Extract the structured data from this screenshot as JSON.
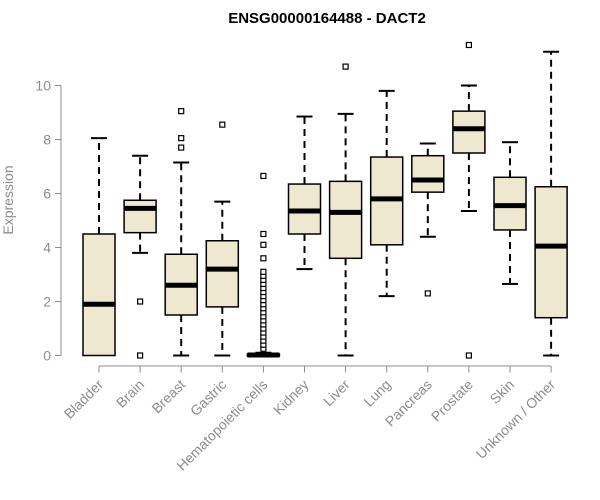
{
  "chart_data": {
    "type": "boxplot",
    "title": "ENSG00000164488 - DACT2",
    "xlabel": "",
    "ylabel": "Expression",
    "ylim": [
      0,
      11.5
    ],
    "yticks": [
      0,
      2,
      4,
      6,
      8,
      10
    ],
    "colors": {
      "box_fill": "#efe8d1",
      "stroke": "#000000",
      "axis": "#8c8c8c",
      "median": "#000000"
    },
    "categories": [
      "Bladder",
      "Brain",
      "Breast",
      "Gastric",
      "Hematopoietic cells",
      "Kidney",
      "Liver",
      "Lung",
      "Pancreas",
      "Prostate",
      "Skin",
      "Unknown / Other"
    ],
    "boxes": [
      {
        "category": "Bladder",
        "min": 0,
        "q1": 0,
        "median": 1.9,
        "q3": 4.5,
        "max": 8.05,
        "outliers": []
      },
      {
        "category": "Brain",
        "min": 3.8,
        "q1": 4.55,
        "median": 5.45,
        "q3": 5.75,
        "max": 7.4,
        "outliers": [
          2.0,
          0.0
        ]
      },
      {
        "category": "Breast",
        "min": 0,
        "q1": 1.5,
        "median": 2.6,
        "q3": 3.75,
        "max": 7.15,
        "outliers": [
          7.7,
          8.05,
          9.05
        ]
      },
      {
        "category": "Gastric",
        "min": 0,
        "q1": 1.8,
        "median": 3.2,
        "q3": 4.25,
        "max": 5.7,
        "outliers": [
          8.55
        ]
      },
      {
        "category": "Hematopoietic cells",
        "min": 0,
        "q1": 0,
        "median": 0.02,
        "q3": 0.05,
        "max": 0.1,
        "outliers": [
          0.25,
          0.4,
          0.55,
          0.7,
          0.85,
          1.0,
          1.15,
          1.3,
          1.45,
          1.6,
          1.75,
          1.9,
          2.05,
          2.2,
          2.35,
          2.5,
          2.65,
          2.8,
          2.95,
          3.1,
          3.6,
          4.1,
          4.5,
          6.65
        ]
      },
      {
        "category": "Kidney",
        "min": 3.2,
        "q1": 4.5,
        "median": 5.35,
        "q3": 6.35,
        "max": 8.85,
        "outliers": []
      },
      {
        "category": "Liver",
        "min": 0,
        "q1": 3.6,
        "median": 5.3,
        "q3": 6.45,
        "max": 8.95,
        "outliers": [
          10.7
        ]
      },
      {
        "category": "Lung",
        "min": 2.2,
        "q1": 4.1,
        "median": 5.8,
        "q3": 7.35,
        "max": 9.8,
        "outliers": []
      },
      {
        "category": "Pancreas",
        "min": 4.4,
        "q1": 6.05,
        "median": 6.5,
        "q3": 7.4,
        "max": 7.85,
        "outliers": [
          2.3
        ]
      },
      {
        "category": "Prostate",
        "min": 5.35,
        "q1": 7.5,
        "median": 8.4,
        "q3": 9.05,
        "max": 10.0,
        "outliers": [
          11.5,
          0.0
        ]
      },
      {
        "category": "Skin",
        "min": 2.65,
        "q1": 4.65,
        "median": 5.55,
        "q3": 6.6,
        "max": 7.9,
        "outliers": []
      },
      {
        "category": "Unknown / Other",
        "min": 0,
        "q1": 1.4,
        "median": 4.05,
        "q3": 6.25,
        "max": 11.25,
        "outliers": []
      }
    ]
  }
}
